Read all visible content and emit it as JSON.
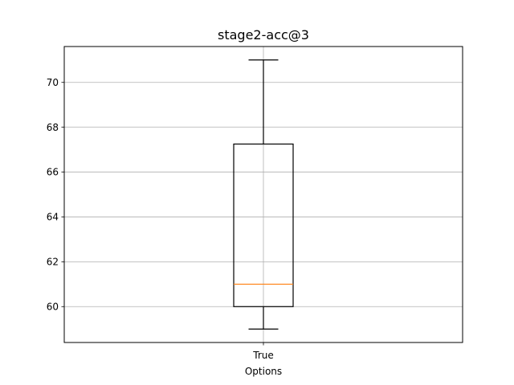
{
  "chart_data": {
    "type": "box",
    "title": "stage2-acc@3",
    "xlabel": "Options",
    "ylabel": "",
    "categories": [
      "True"
    ],
    "boxes": [
      {
        "category": "True",
        "whisker_low": 59,
        "q1": 60,
        "median": 61,
        "q3": 67.25,
        "whisker_high": 71
      }
    ],
    "ylim": [
      58.4,
      71.6
    ],
    "yticks": [
      60,
      62,
      64,
      66,
      68,
      70
    ],
    "grid": true,
    "colors": {
      "box": "#000000",
      "median": "#ff7f0e",
      "grid": "#b0b0b0"
    }
  }
}
